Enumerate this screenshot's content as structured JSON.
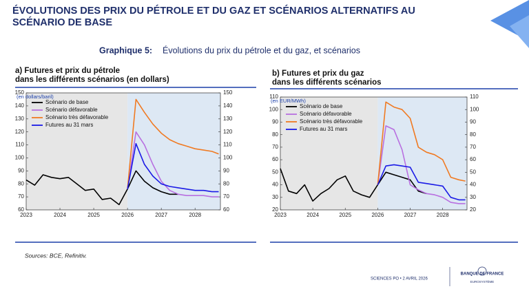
{
  "header": {
    "title": [
      "ÉVOLUTIONS DES PRIX DU PÉTROLE ET DU GAZ ET SCÉNARIOS ALTERNATIFS AU",
      "SCÉNARIO DE BASE"
    ]
  },
  "subtitle": {
    "label": "Graphique 5:",
    "text": "Évolutions du prix du pétrole et du gaz, et scénarios"
  },
  "source": "Sources: BCE, Refinitiv.",
  "footer": {
    "event": "SCIENCES PO • 2 AVRIL 2026",
    "logo": "BANQUE DE FRANCE",
    "logo_sub": "EUROSYSTÈME"
  },
  "chart_data": [
    {
      "type": "line",
      "title": [
        "a) Futures et prix du pétrole",
        "dans les différents scénarios (en dollars)"
      ],
      "y_label": "(en dollars/baril)",
      "x": [
        2023,
        2023.25,
        2023.5,
        2023.75,
        2024,
        2024.25,
        2024.5,
        2024.75,
        2025,
        2025.25,
        2025.5,
        2025.75,
        2026,
        2026.25,
        2026.5,
        2026.75,
        2027,
        2027.25,
        2027.5,
        2027.75,
        2028,
        2028.25,
        2028.5,
        2028.7
      ],
      "xlim": [
        2023,
        2028.75
      ],
      "xticks": [
        2023,
        2024,
        2025,
        2026,
        2027,
        2028
      ],
      "ylim": [
        60,
        150
      ],
      "yticks": [
        60,
        70,
        80,
        90,
        100,
        110,
        120,
        130,
        140,
        150
      ],
      "y2lim": [
        60,
        150
      ],
      "y2ticks": [
        60,
        70,
        80,
        90,
        100,
        110,
        120,
        130,
        140,
        150
      ],
      "forecast_start": 2026,
      "series": [
        {
          "name": "Scénario de base",
          "color": "#000000",
          "values": [
            83,
            79,
            87,
            85,
            84,
            85,
            80,
            75,
            76,
            68,
            69,
            64,
            76,
            90,
            82,
            77,
            74,
            72,
            72,
            null,
            null,
            null,
            null,
            null
          ]
        },
        {
          "name": "Scénario défavorable",
          "color": "#b86fe0",
          "values": [
            null,
            null,
            null,
            null,
            null,
            null,
            null,
            null,
            null,
            null,
            null,
            null,
            76,
            120,
            110,
            95,
            82,
            75,
            72,
            71,
            71,
            71,
            70,
            70
          ]
        },
        {
          "name": "Scénario très défavorable",
          "color": "#f07a22",
          "values": [
            null,
            null,
            null,
            null,
            null,
            null,
            null,
            null,
            null,
            null,
            null,
            null,
            76,
            145,
            135,
            126,
            119,
            114,
            111,
            109,
            107,
            106,
            105,
            103
          ]
        },
        {
          "name": "Futures au 31 mars",
          "color": "#1a1ae6",
          "values": [
            null,
            null,
            null,
            null,
            null,
            null,
            null,
            null,
            null,
            null,
            null,
            null,
            76,
            111,
            95,
            86,
            80,
            78,
            77,
            76,
            75,
            75,
            74,
            74
          ]
        }
      ]
    },
    {
      "type": "line",
      "title": [
        "b) Futures et prix du gaz",
        "dans les différents scénarios"
      ],
      "y_label": "(en EUR/MWh)",
      "x": [
        2023,
        2023.25,
        2023.5,
        2023.75,
        2024,
        2024.25,
        2024.5,
        2024.75,
        2025,
        2025.25,
        2025.5,
        2025.75,
        2026,
        2026.25,
        2026.5,
        2026.75,
        2027,
        2027.25,
        2027.5,
        2027.75,
        2028,
        2028.25,
        2028.5,
        2028.7
      ],
      "xlim": [
        2023,
        2028.75
      ],
      "xticks": [
        2023,
        2024,
        2025,
        2026,
        2027,
        2028
      ],
      "ylim": [
        20,
        110
      ],
      "yticks": [
        20,
        30,
        40,
        50,
        60,
        70,
        80,
        90,
        100,
        110
      ],
      "y2lim": [
        20,
        110
      ],
      "y2ticks": [
        20,
        30,
        40,
        50,
        60,
        70,
        80,
        90,
        100,
        110
      ],
      "forecast_start": 2026,
      "series": [
        {
          "name": "Scénario de base",
          "color": "#000000",
          "values": [
            53,
            35,
            33,
            40,
            27,
            33,
            37,
            44,
            47,
            35,
            32,
            30,
            40,
            50,
            48,
            46,
            44,
            35,
            33,
            null,
            null,
            null,
            null,
            null
          ]
        },
        {
          "name": "Scénario défavorable",
          "color": "#b86fe0",
          "values": [
            null,
            null,
            null,
            null,
            null,
            null,
            null,
            null,
            null,
            null,
            null,
            null,
            40,
            87,
            84,
            68,
            40,
            36,
            33,
            32,
            30,
            26,
            25,
            25
          ]
        },
        {
          "name": "Scénario très défavorable",
          "color": "#f07a22",
          "values": [
            null,
            null,
            null,
            null,
            null,
            null,
            null,
            null,
            null,
            null,
            null,
            null,
            40,
            106,
            102,
            100,
            93,
            70,
            66,
            64,
            60,
            46,
            44,
            43
          ]
        },
        {
          "name": "Futures au 31 mars",
          "color": "#1a1ae6",
          "values": [
            null,
            null,
            null,
            null,
            null,
            null,
            null,
            null,
            null,
            null,
            null,
            null,
            40,
            55,
            56,
            55,
            54,
            42,
            41,
            40,
            39,
            30,
            28,
            28
          ]
        }
      ]
    }
  ]
}
